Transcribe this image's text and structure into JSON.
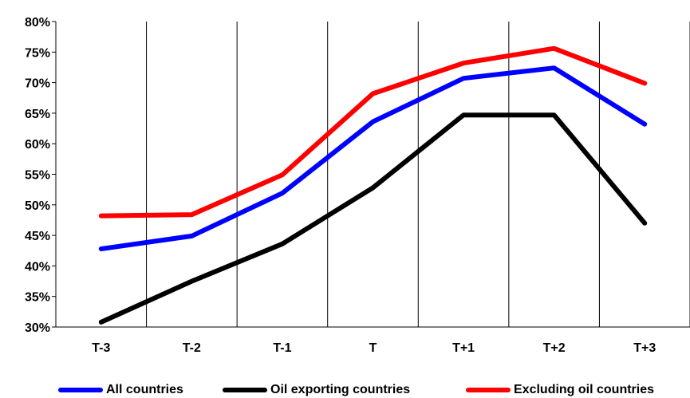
{
  "chart_data": {
    "type": "line",
    "title": "",
    "xlabel": "",
    "ylabel": "",
    "categories": [
      "T-3",
      "T-2",
      "T-1",
      "T",
      "T+1",
      "T+2",
      "T+3"
    ],
    "ylim": [
      30,
      80
    ],
    "yticks": [
      "30%",
      "35%",
      "40%",
      "45%",
      "50%",
      "55%",
      "60%",
      "65%",
      "70%",
      "75%",
      "80%"
    ],
    "grid": {
      "horizontal": false,
      "vertical": true
    },
    "legend_position": "bottom",
    "series": [
      {
        "name": "All countries",
        "color": "#0000ff",
        "values": [
          42.8,
          44.9,
          51.9,
          63.6,
          70.7,
          72.4,
          63.2
        ]
      },
      {
        "name": "Oil exporting countries",
        "color": "#000000",
        "values": [
          30.8,
          37.5,
          43.6,
          52.8,
          64.7,
          64.7,
          47.0
        ]
      },
      {
        "name": "Excluding oil countries",
        "color": "#ff0000",
        "values": [
          48.2,
          48.4,
          54.9,
          68.2,
          73.2,
          75.6,
          69.9
        ]
      }
    ]
  }
}
